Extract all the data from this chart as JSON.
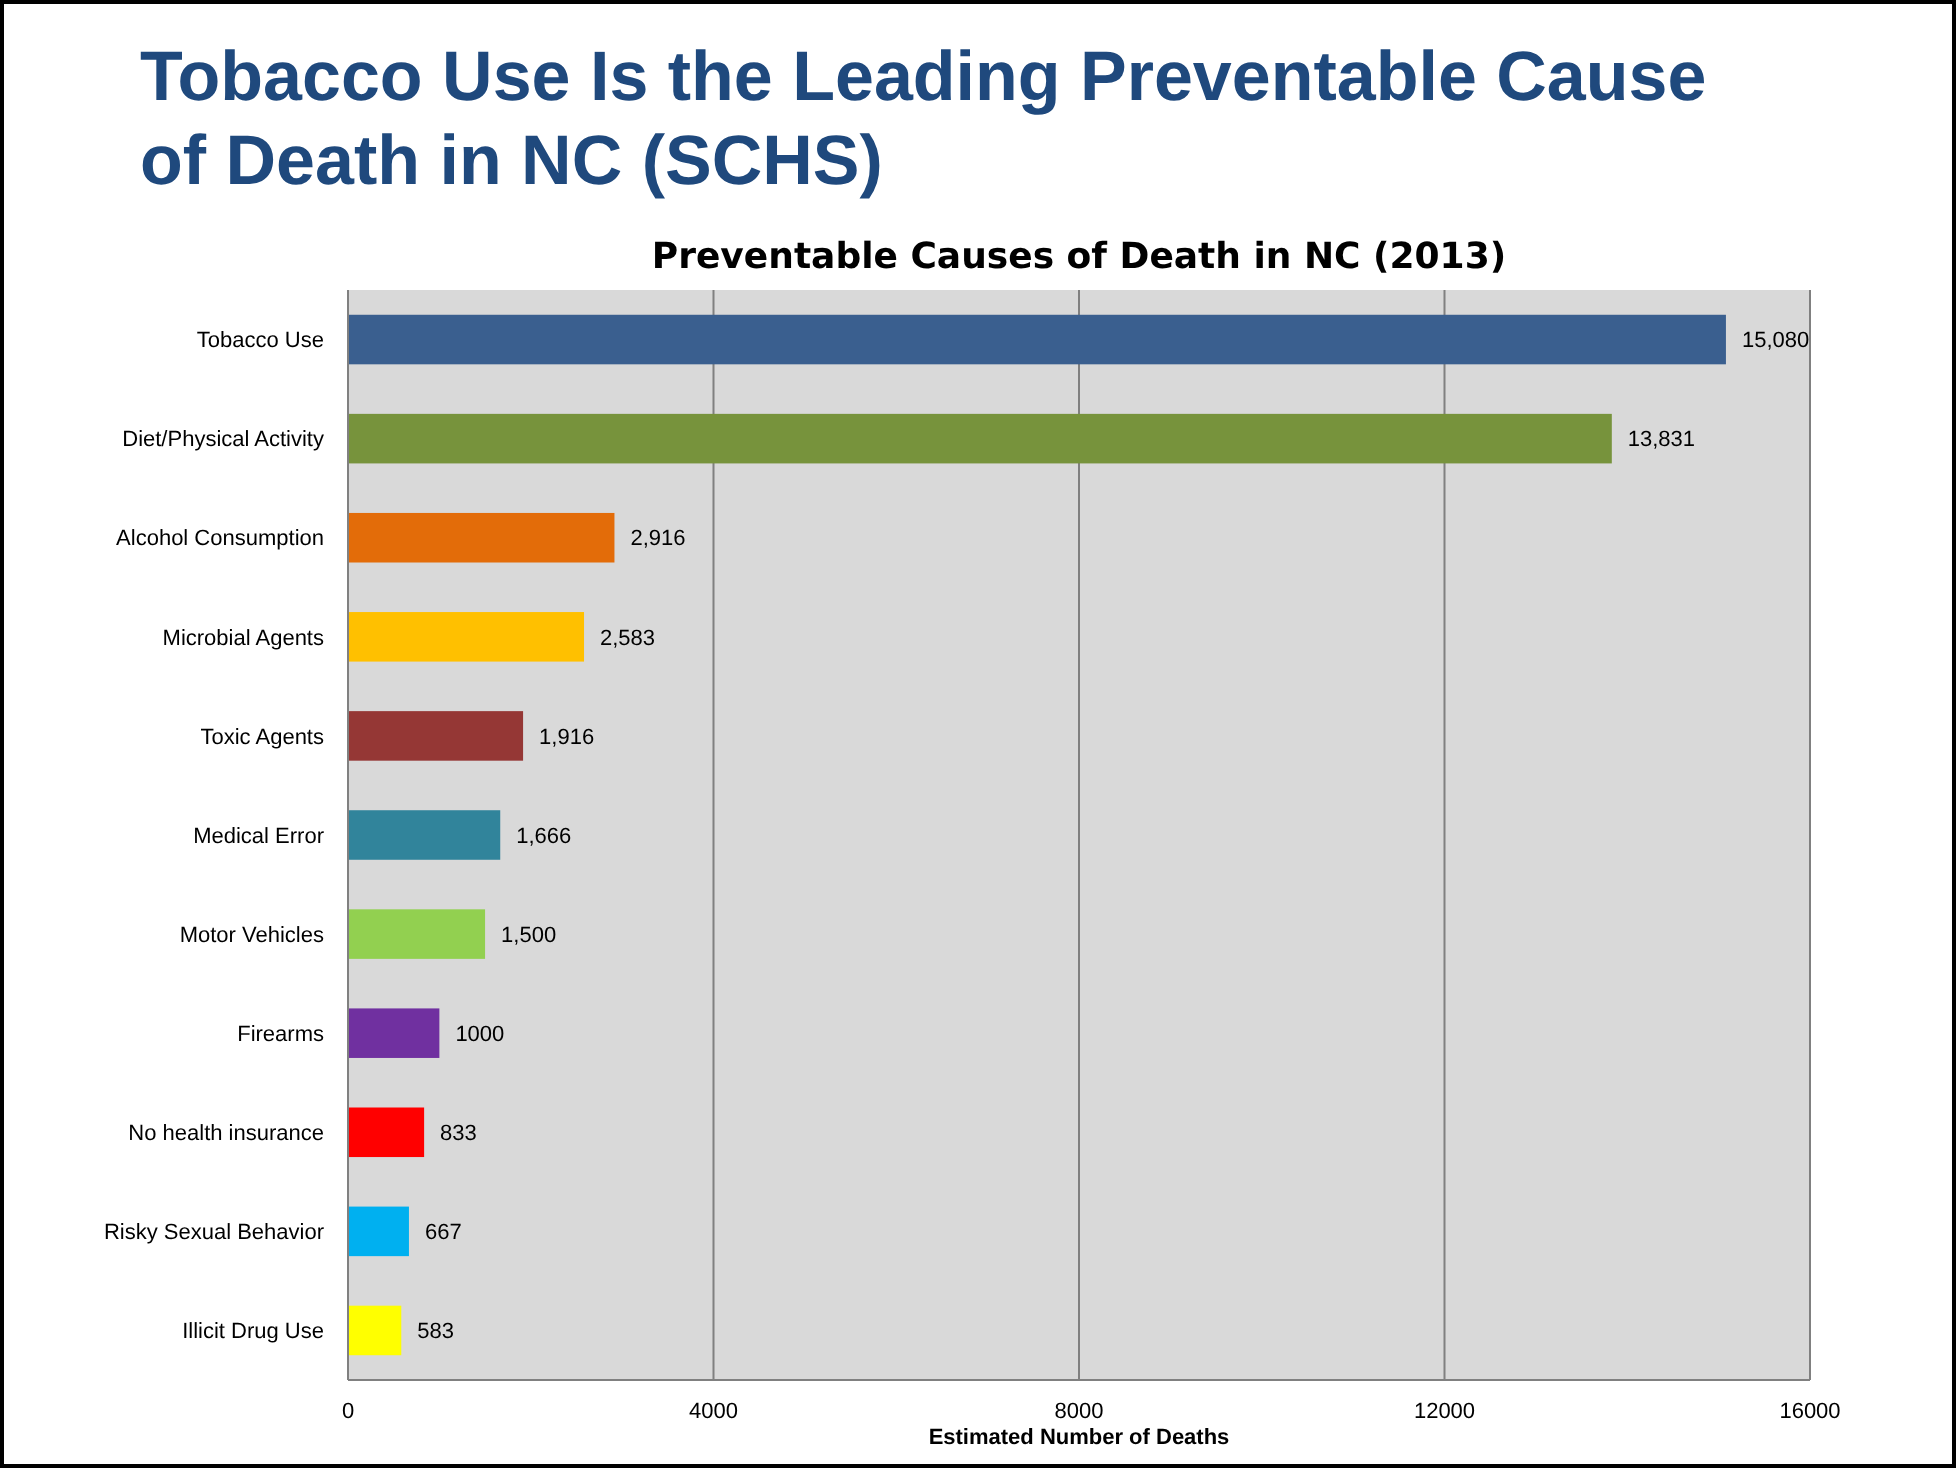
{
  "chart_data": {
    "type": "bar",
    "orientation": "horizontal",
    "title": "Tobacco Use Is the Leading Preventable Cause of Death in NC (SCHS)",
    "subtitle": "Preventable Causes of Death in NC (2013)",
    "xlabel": "Estimated Number of Deaths",
    "categories": [
      "Tobacco Use",
      "Diet/Physical Activity",
      "Alcohol Consumption",
      "Microbial Agents",
      "Toxic Agents",
      "Medical Error",
      "Motor Vehicles",
      "Firearms",
      "No health insurance",
      "Risky Sexual Behavior",
      "Illicit Drug Use"
    ],
    "values": [
      15080,
      13831,
      2916,
      2583,
      1916,
      1666,
      1500,
      1000,
      833,
      667,
      583
    ],
    "value_labels": [
      "15,080",
      "13,831",
      "2,916",
      "2,583",
      "1,916",
      "1,666",
      "1,500",
      "1000",
      "833",
      "667",
      "583"
    ],
    "colors": [
      "#3a5f8f",
      "#77933c",
      "#e36c09",
      "#ffc000",
      "#953735",
      "#31849b",
      "#92d050",
      "#7030a0",
      "#ff0000",
      "#00b0f0",
      "#ffff00"
    ],
    "xlim": [
      0,
      16000
    ],
    "xticks": [
      0,
      4000,
      8000,
      12000,
      16000
    ],
    "grid": "x"
  }
}
